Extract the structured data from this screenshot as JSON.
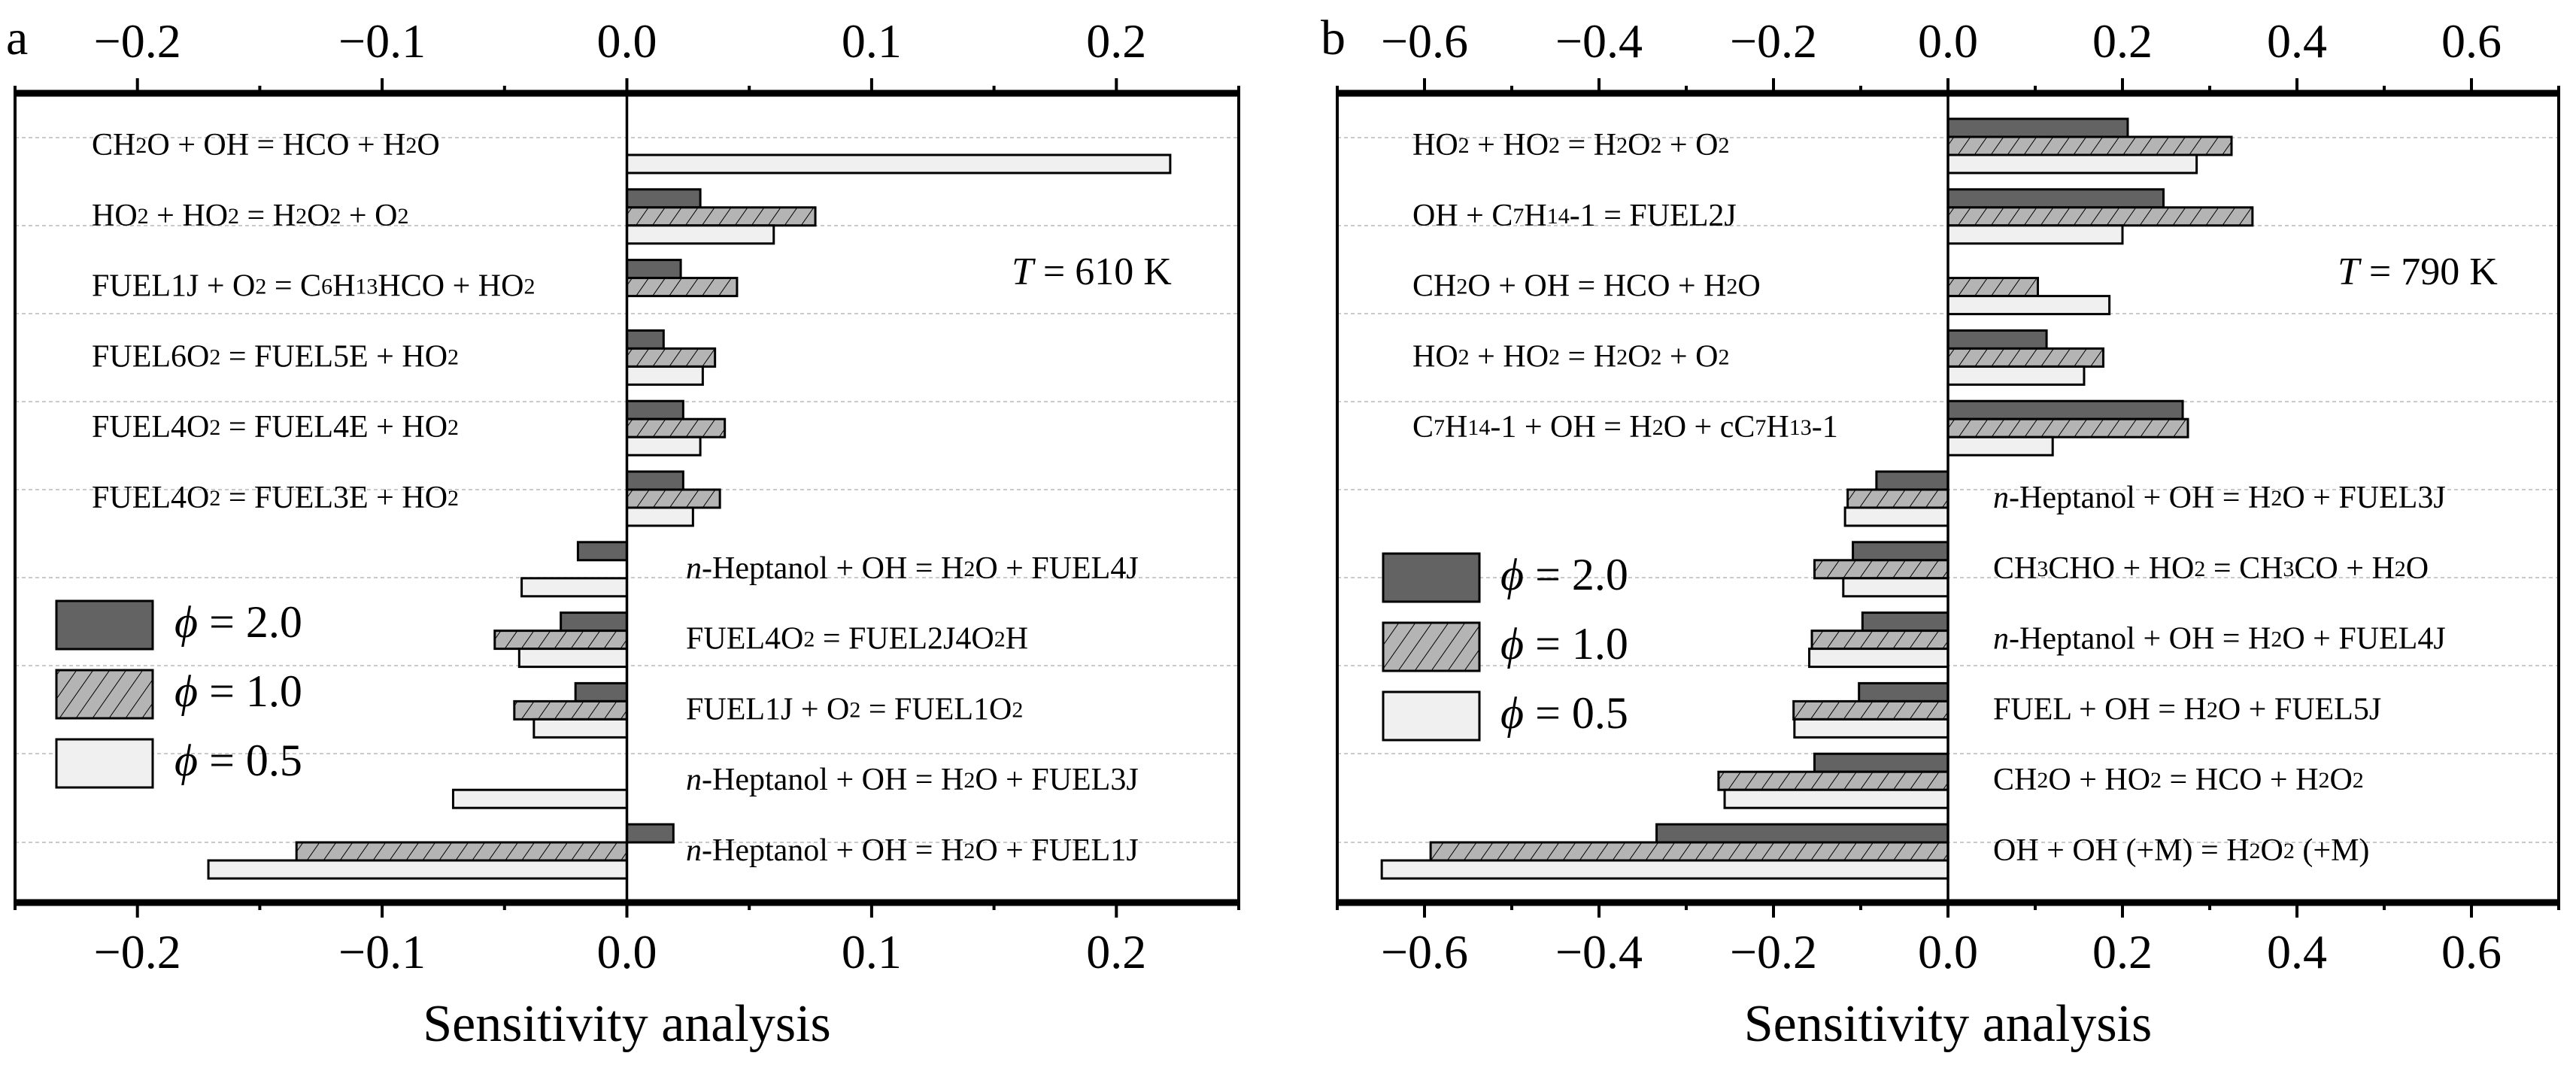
{
  "colors": {
    "phi_2_0": "#636363",
    "phi_1_0": "#b4b4b4",
    "phi_1_0_hatch": "#000000",
    "phi_0_5": "#f0f0f0"
  },
  "chart_data": [
    {
      "type": "bar",
      "orientation": "horizontal",
      "panel": "a",
      "annotation": {
        "italic": "T",
        "text": " = 610 K"
      },
      "xlabel": "Sensitivity analysis",
      "xlim": [
        -0.25,
        0.25
      ],
      "xticks": [
        -0.2,
        -0.1,
        0.0,
        0.1,
        0.2
      ],
      "xtick_labels": [
        "−0.2",
        "−0.1",
        "0.0",
        "0.1",
        "0.2"
      ],
      "grid": true,
      "legend_position": "left-middle",
      "legend": [
        {
          "symbol": "ϕ",
          "text": " = 2.0"
        },
        {
          "symbol": "ϕ",
          "text": " = 1.0"
        },
        {
          "symbol": "ϕ",
          "text": " = 0.5"
        }
      ],
      "series_names": [
        "ϕ = 2.0",
        "ϕ = 1.0",
        "ϕ = 0.5"
      ],
      "categories": [
        {
          "side": "left",
          "segments": [
            [
              "CH",
              "n"
            ],
            [
              "2",
              "s"
            ],
            [
              "O + OH = HCO + H",
              "n"
            ],
            [
              "2",
              "s"
            ],
            [
              "O",
              "n"
            ]
          ]
        },
        {
          "side": "left",
          "segments": [
            [
              "HO",
              "n"
            ],
            [
              "2",
              "s"
            ],
            [
              " + HO",
              "n"
            ],
            [
              "2",
              "s"
            ],
            [
              " = H",
              "n"
            ],
            [
              "2",
              "s"
            ],
            [
              "O",
              "n"
            ],
            [
              "2",
              "s"
            ],
            [
              " + O",
              "n"
            ],
            [
              "2",
              "s"
            ]
          ]
        },
        {
          "side": "left",
          "segments": [
            [
              "FUEL1J + O",
              "n"
            ],
            [
              "2",
              "s"
            ],
            [
              " = C",
              "n"
            ],
            [
              "6",
              "s"
            ],
            [
              "H",
              "n"
            ],
            [
              "13",
              "s"
            ],
            [
              "HCO + HO",
              "n"
            ],
            [
              "2",
              "s"
            ]
          ]
        },
        {
          "side": "left",
          "segments": [
            [
              "FUEL6O",
              "n"
            ],
            [
              "2",
              "s"
            ],
            [
              " = FUEL5E +  HO",
              "n"
            ],
            [
              "2",
              "s"
            ]
          ]
        },
        {
          "side": "left",
          "segments": [
            [
              "FUEL4O",
              "n"
            ],
            [
              "2",
              "s"
            ],
            [
              " = FUEL4E +  HO",
              "n"
            ],
            [
              "2",
              "s"
            ]
          ]
        },
        {
          "side": "left",
          "segments": [
            [
              "FUEL4O",
              "n"
            ],
            [
              "2",
              "s"
            ],
            [
              " = FUEL3E +  HO",
              "n"
            ],
            [
              "2",
              "s"
            ]
          ]
        },
        {
          "side": "right",
          "segments": [
            [
              "n",
              "i"
            ],
            [
              "-Heptanol + OH = H",
              "n"
            ],
            [
              "2",
              "s"
            ],
            [
              "O + FUEL4J",
              "n"
            ]
          ]
        },
        {
          "side": "right",
          "segments": [
            [
              "FUEL4O",
              "n"
            ],
            [
              "2",
              "s"
            ],
            [
              " = FUEL2J4O",
              "n"
            ],
            [
              "2",
              "s"
            ],
            [
              "H",
              "n"
            ]
          ]
        },
        {
          "side": "right",
          "segments": [
            [
              "FUEL1J + O",
              "n"
            ],
            [
              "2",
              "s"
            ],
            [
              " = FUEL1O",
              "n"
            ],
            [
              "2",
              "s"
            ]
          ]
        },
        {
          "side": "right",
          "segments": [
            [
              "n",
              "i"
            ],
            [
              "-Heptanol + OH = H",
              "n"
            ],
            [
              "2",
              "s"
            ],
            [
              "O + FUEL3J",
              "n"
            ]
          ]
        },
        {
          "side": "right",
          "segments": [
            [
              "n",
              "i"
            ],
            [
              "-Heptanol + OH = H",
              "n"
            ],
            [
              "2",
              "s"
            ],
            [
              "O + FUEL1J",
              "n"
            ]
          ]
        }
      ],
      "series": [
        {
          "name": "ϕ = 2.0",
          "values": [
            null,
            0.03,
            0.022,
            0.015,
            0.023,
            0.023,
            -0.02,
            -0.027,
            -0.021,
            null,
            0.019
          ]
        },
        {
          "name": "ϕ = 1.0",
          "values": [
            null,
            0.077,
            0.045,
            0.036,
            0.04,
            0.038,
            null,
            -0.054,
            -0.046,
            null,
            -0.135
          ]
        },
        {
          "name": "ϕ = 0.5",
          "values": [
            0.222,
            0.06,
            null,
            0.031,
            0.03,
            0.027,
            -0.043,
            -0.044,
            -0.038,
            -0.071,
            -0.171
          ]
        }
      ]
    },
    {
      "type": "bar",
      "orientation": "horizontal",
      "panel": "b",
      "annotation": {
        "italic": "T",
        "text": " = 790 K"
      },
      "xlabel": "Sensitivity analysis",
      "xlim": [
        -0.7,
        0.7
      ],
      "xticks": [
        -0.6,
        -0.4,
        -0.2,
        0.0,
        0.2,
        0.4,
        0.6
      ],
      "xtick_labels": [
        "−0.6",
        "−0.4",
        "−0.2",
        "0.0",
        "0.2",
        "0.4",
        "0.6"
      ],
      "grid": true,
      "legend_position": "left-middle",
      "legend": [
        {
          "symbol": "ϕ",
          "text": " = 2.0"
        },
        {
          "symbol": "ϕ",
          "text": " = 1.0"
        },
        {
          "symbol": "ϕ",
          "text": " = 0.5"
        }
      ],
      "series_names": [
        "ϕ = 2.0",
        "ϕ = 1.0",
        "ϕ = 0.5"
      ],
      "categories": [
        {
          "side": "left",
          "segments": [
            [
              "HO",
              "n"
            ],
            [
              "2",
              "s"
            ],
            [
              " + HO",
              "n"
            ],
            [
              "2",
              "s"
            ],
            [
              " = H",
              "n"
            ],
            [
              "2",
              "s"
            ],
            [
              "O",
              "n"
            ],
            [
              "2",
              "s"
            ],
            [
              " + O",
              "n"
            ],
            [
              "2",
              "s"
            ]
          ]
        },
        {
          "side": "left",
          "segments": [
            [
              "OH + C",
              "n"
            ],
            [
              "7",
              "s"
            ],
            [
              "H",
              "n"
            ],
            [
              "14",
              "s"
            ],
            [
              "-1 = FUEL2J",
              "n"
            ]
          ]
        },
        {
          "side": "left",
          "segments": [
            [
              "CH",
              "n"
            ],
            [
              "2",
              "s"
            ],
            [
              "O + OH = HCO + H",
              "n"
            ],
            [
              "2",
              "s"
            ],
            [
              "O",
              "n"
            ]
          ]
        },
        {
          "side": "left",
          "segments": [
            [
              "HO",
              "n"
            ],
            [
              "2",
              "s"
            ],
            [
              " + HO",
              "n"
            ],
            [
              "2",
              "s"
            ],
            [
              " = H",
              "n"
            ],
            [
              "2",
              "s"
            ],
            [
              "O",
              "n"
            ],
            [
              "2",
              "s"
            ],
            [
              " + O",
              "n"
            ],
            [
              "2",
              "s"
            ]
          ]
        },
        {
          "side": "left",
          "segments": [
            [
              "C",
              "n"
            ],
            [
              "7",
              "s"
            ],
            [
              "H",
              "n"
            ],
            [
              "14",
              "s"
            ],
            [
              "-1 + OH = H",
              "n"
            ],
            [
              "2",
              "s"
            ],
            [
              "O + cC",
              "n"
            ],
            [
              "7",
              "s"
            ],
            [
              "H",
              "n"
            ],
            [
              "13",
              "s"
            ],
            [
              "-1",
              "n"
            ]
          ]
        },
        {
          "side": "right",
          "segments": [
            [
              "n",
              "i"
            ],
            [
              "-Heptanol + OH = H",
              "n"
            ],
            [
              "2",
              "s"
            ],
            [
              "O + FUEL3J",
              "n"
            ]
          ]
        },
        {
          "side": "right",
          "segments": [
            [
              "CH",
              "n"
            ],
            [
              "3",
              "s"
            ],
            [
              "CHO + HO",
              "n"
            ],
            [
              "2",
              "s"
            ],
            [
              " = CH",
              "n"
            ],
            [
              "3",
              "s"
            ],
            [
              "CO + H",
              "n"
            ],
            [
              "2",
              "s"
            ],
            [
              "O",
              "n"
            ]
          ]
        },
        {
          "side": "right",
          "segments": [
            [
              "n",
              "i"
            ],
            [
              "-Heptanol + OH = H",
              "n"
            ],
            [
              "2",
              "s"
            ],
            [
              "O + FUEL4J",
              "n"
            ]
          ]
        },
        {
          "side": "right",
          "segments": [
            [
              "FUEL + OH = H",
              "n"
            ],
            [
              "2",
              "s"
            ],
            [
              "O + FUEL5J",
              "n"
            ]
          ]
        },
        {
          "side": "right",
          "segments": [
            [
              "CH",
              "n"
            ],
            [
              "2",
              "s"
            ],
            [
              "O + HO",
              "n"
            ],
            [
              "2",
              "s"
            ],
            [
              " = HCO + H",
              "n"
            ],
            [
              "2",
              "s"
            ],
            [
              "O",
              "n"
            ],
            [
              "2",
              "s"
            ]
          ]
        },
        {
          "side": "right",
          "segments": [
            [
              "OH + OH (+M) = H",
              "n"
            ],
            [
              "2",
              "s"
            ],
            [
              "O",
              "n"
            ],
            [
              "2",
              "s"
            ],
            [
              " (+M)",
              "n"
            ]
          ]
        }
      ],
      "series": [
        {
          "name": "ϕ = 2.0",
          "values": [
            0.206,
            0.247,
            null,
            0.113,
            0.269,
            -0.082,
            -0.109,
            -0.098,
            -0.102,
            -0.153,
            -0.334
          ]
        },
        {
          "name": "ϕ = 1.0",
          "values": [
            0.325,
            0.349,
            0.103,
            0.178,
            0.275,
            -0.115,
            -0.153,
            -0.156,
            -0.177,
            -0.263,
            -0.593
          ]
        },
        {
          "name": "ϕ = 0.5",
          "values": [
            0.285,
            0.2,
            0.185,
            0.156,
            0.12,
            -0.118,
            -0.12,
            -0.159,
            -0.176,
            -0.256,
            -0.649
          ]
        }
      ]
    }
  ]
}
